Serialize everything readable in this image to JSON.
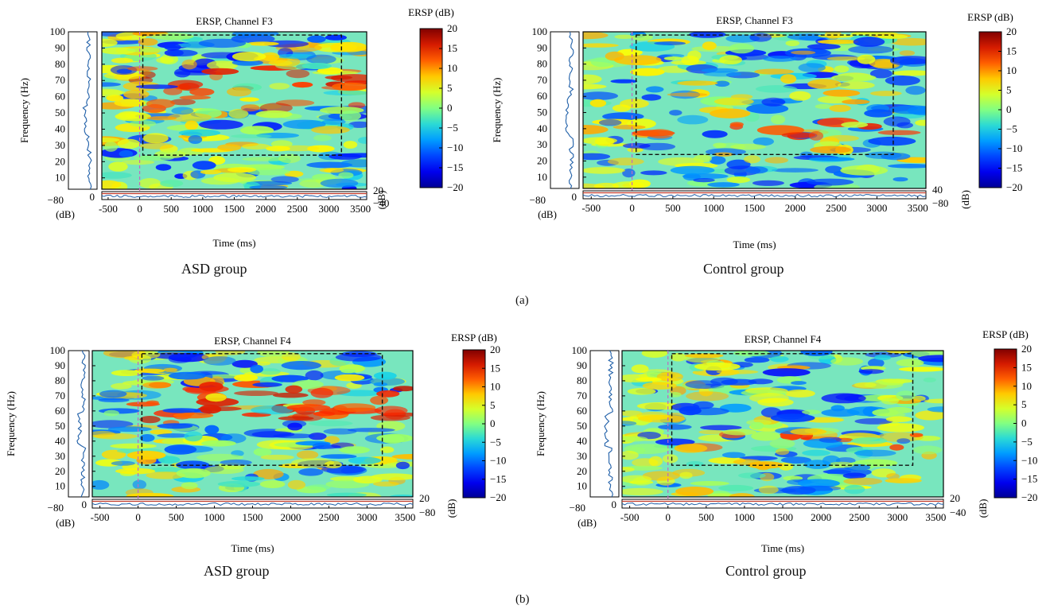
{
  "figure": {
    "panel_labels": [
      "(a)",
      "(b)"
    ]
  },
  "panels": [
    {
      "group_caption": "ASD group",
      "ersp_color": "ERSP (dB)",
      "bottom_trace_scale": [
        "20",
        "−40"
      ]
    },
    {
      "group_caption": "Control group",
      "ersp_color": "ERSP (dB)",
      "bottom_trace_scale": [
        "40",
        "−80"
      ]
    },
    {
      "group_caption": "ASD group",
      "ersp_color": "ERSP (dB)",
      "bottom_trace_scale": [
        "20",
        "−80"
      ]
    },
    {
      "group_caption": "Control group",
      "ersp_color": "ERSP (dB)",
      "bottom_trace_scale": [
        "20",
        "−40"
      ]
    }
  ],
  "shared_labels": {
    "side_trace_ticks": [
      "−80",
      "0"
    ],
    "side_trace_unit": "(dB)",
    "right_unit": "(dB)"
  },
  "chart_data": [
    {
      "type": "heatmap",
      "title": "ERSP, Channel F3",
      "xlabel": "Time (ms)",
      "ylabel": "Frequency (Hz)",
      "x_ticks": [
        -500,
        0,
        500,
        1000,
        1500,
        2000,
        2500,
        3000,
        3500
      ],
      "y_ticks": [
        10,
        20,
        30,
        40,
        50,
        60,
        70,
        80,
        90,
        100
      ],
      "xlim": [
        -600,
        3600
      ],
      "ylim": [
        3,
        100
      ],
      "colorbar": {
        "label": "ERSP (dB)",
        "range": [
          -20,
          20
        ],
        "ticks": [
          20,
          15,
          10,
          5,
          0,
          -5,
          -10,
          -15,
          -20
        ]
      },
      "highlight_box": {
        "time": [
          50,
          3200
        ],
        "freq": [
          24,
          98
        ]
      },
      "stimulus_onset_ms": 0,
      "pattern": "high-gamma increase 55–75 Hz after onset"
    },
    {
      "type": "heatmap",
      "title": "ERSP, Channel F3",
      "xlabel": "Time (ms)",
      "ylabel": "Frequency (Hz)",
      "x_ticks": [
        -500,
        0,
        500,
        1000,
        1500,
        2000,
        2500,
        3000,
        3500
      ],
      "y_ticks": [
        10,
        20,
        30,
        40,
        50,
        60,
        70,
        80,
        90,
        100
      ],
      "xlim": [
        -600,
        3600
      ],
      "ylim": [
        3,
        100
      ],
      "colorbar": {
        "label": "ERSP (dB)",
        "range": [
          -20,
          20
        ],
        "ticks": [
          20,
          15,
          10,
          5,
          0,
          -5,
          -10,
          -15,
          -20
        ]
      },
      "highlight_box": {
        "time": [
          50,
          3200
        ],
        "freq": [
          24,
          98
        ]
      },
      "stimulus_onset_ms": 0,
      "pattern": "mostly decrease with sparse bands"
    },
    {
      "type": "heatmap",
      "title": "ERSP, Channel F4",
      "xlabel": "Time (ms)",
      "ylabel": "Frequency (Hz)",
      "x_ticks": [
        -500,
        0,
        500,
        1000,
        1500,
        2000,
        2500,
        3000,
        3500
      ],
      "y_ticks": [
        10,
        20,
        30,
        40,
        50,
        60,
        70,
        80,
        90,
        100
      ],
      "xlim": [
        -600,
        3600
      ],
      "ylim": [
        3,
        100
      ],
      "colorbar": {
        "label": "ERSP (dB)",
        "range": [
          -20,
          20
        ],
        "ticks": [
          20,
          15,
          10,
          5,
          0,
          -5,
          -10,
          -15,
          -20
        ]
      },
      "highlight_box": {
        "time": [
          50,
          3200
        ],
        "freq": [
          24,
          98
        ]
      },
      "stimulus_onset_ms": 0,
      "pattern": "strong high-gamma increase 60–75 Hz after onset"
    },
    {
      "type": "heatmap",
      "title": "ERSP, Channel F4",
      "xlabel": "Time (ms)",
      "ylabel": "Frequency (Hz)",
      "x_ticks": [
        -500,
        0,
        500,
        1000,
        1500,
        2000,
        2500,
        3000,
        3500
      ],
      "y_ticks": [
        10,
        20,
        30,
        40,
        50,
        60,
        70,
        80,
        90,
        100
      ],
      "xlim": [
        -600,
        3600
      ],
      "ylim": [
        3,
        100
      ],
      "colorbar": {
        "label": "ERSP (dB)",
        "range": [
          -20,
          20
        ],
        "ticks": [
          20,
          15,
          10,
          5,
          0,
          -5,
          -10,
          -15,
          -20
        ]
      },
      "highlight_box": {
        "time": [
          50,
          3200
        ],
        "freq": [
          24,
          98
        ]
      },
      "stimulus_onset_ms": 0,
      "pattern": "mostly decrease with sparse bands"
    }
  ]
}
